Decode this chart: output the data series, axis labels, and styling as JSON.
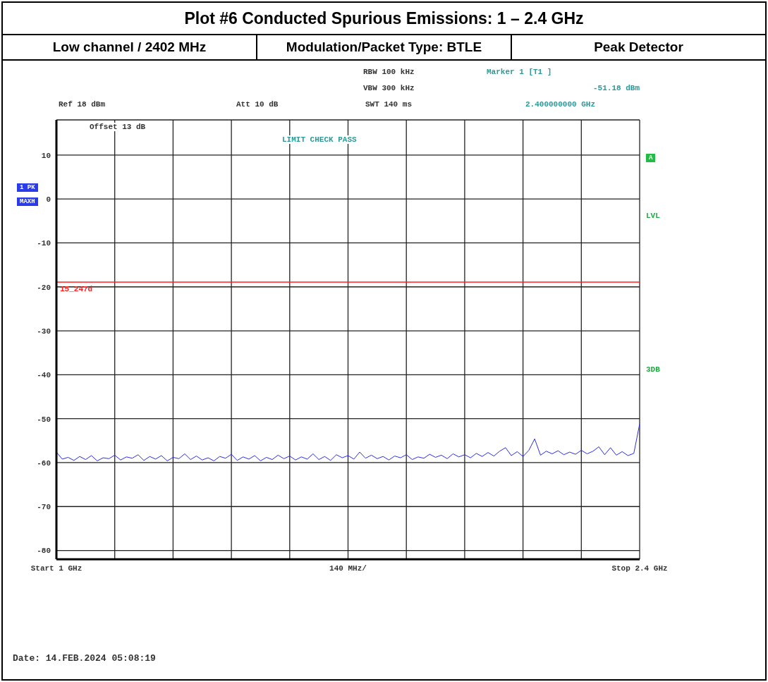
{
  "chart_data": {
    "type": "line",
    "title": "Plot #6 Conducted Spurious Emissions: 1 – 2.4 GHz",
    "xlabel": "140 MHz/",
    "annotations": [
      "Low channel / 2402 MHz",
      "Modulation/Packet Type: BTLE",
      "Peak Detector",
      "RBW 100 kHz",
      "VBW 300 kHz",
      "SWT 140 ms",
      "Marker 1 [T1 ]",
      "-51.18 dBm",
      "2.400000000 GHz",
      "Ref 18 dBm",
      "Att 10 dB",
      "Offset 13 dB",
      "LIMIT CHECK PASS",
      "1 PK",
      "MAXH",
      "A",
      "LVL",
      "3DB",
      "Date: 14.FEB.2024 05:08:19"
    ],
    "categories": [
      "Start 1 GHz",
      null,
      null,
      null,
      null,
      null,
      null,
      null,
      null,
      null,
      null,
      null,
      null,
      null,
      null,
      null,
      null,
      null,
      null,
      null,
      null,
      null,
      null,
      null,
      null,
      null,
      null,
      null,
      null,
      null,
      null,
      null,
      null,
      null,
      null,
      null,
      null,
      null,
      null,
      null,
      null,
      null,
      null,
      null,
      null,
      null,
      null,
      null,
      null,
      null,
      null,
      null,
      null,
      null,
      null,
      null,
      null,
      null,
      null,
      null,
      null,
      null,
      null,
      null,
      null,
      null,
      null,
      null,
      null,
      null,
      null,
      null,
      null,
      null,
      null,
      null,
      null,
      null,
      null,
      null,
      null,
      null,
      null,
      null,
      null,
      null,
      null,
      null,
      null,
      null,
      null,
      null,
      null,
      null,
      null,
      null,
      null,
      null,
      null,
      null,
      "Stop 2.4 GHz"
    ],
    "series": [
      {
        "color": "#2b2bef",
        "values": [
          -57.6,
          -59.2,
          -58.8,
          -59.5,
          -58.6,
          -59.3,
          -58.4,
          -59.6,
          -58.9,
          -59.1,
          -58.3,
          -59.4,
          -58.7,
          -59.0,
          -58.2,
          -59.5,
          -58.6,
          -59.2,
          -58.4,
          -59.6,
          -58.8,
          -59.1,
          -58.0,
          -59.3,
          -58.5,
          -59.4,
          -58.9,
          -59.6,
          -58.6,
          -59.0,
          -58.1,
          -59.5,
          -58.7,
          -59.2,
          -58.4,
          -59.6,
          -58.8,
          -59.3,
          -58.3,
          -59.1,
          -58.5,
          -59.4,
          -58.7,
          -59.2,
          -58.0,
          -59.3,
          -58.6,
          -59.5,
          -58.2,
          -58.9,
          -58.4,
          -59.2,
          -57.6,
          -59.0,
          -58.3,
          -59.1,
          -58.6,
          -59.4,
          -58.5,
          -58.9,
          -58.2,
          -59.3,
          -58.7,
          -59.0,
          -58.1,
          -58.8,
          -58.3,
          -59.1,
          -58.0,
          -58.7,
          -58.2,
          -58.9,
          -57.9,
          -58.6,
          -57.7,
          -58.5,
          -57.4,
          -56.6,
          -58.4,
          -57.5,
          -58.6,
          -57.2,
          -54.6,
          -58.3,
          -57.4,
          -58.0,
          -57.3,
          -58.2,
          -57.6,
          -58.1,
          -57.2,
          -58.0,
          -57.4,
          -56.4,
          -58.2,
          -56.6,
          -58.3,
          -57.5,
          -58.4,
          -57.9,
          -51.18
        ]
      }
    ],
    "ylim": [
      -82,
      18
    ],
    "yticks": [
      10,
      0,
      -10,
      -20,
      -30,
      -40,
      -50,
      -60,
      -70,
      -80
    ],
    "ref_lines": [
      {
        "axis": "y",
        "value": -18.9,
        "label": "15_247d",
        "color": "#ff2020"
      }
    ],
    "grid": true,
    "marker": "none",
    "line_style": "solid"
  }
}
